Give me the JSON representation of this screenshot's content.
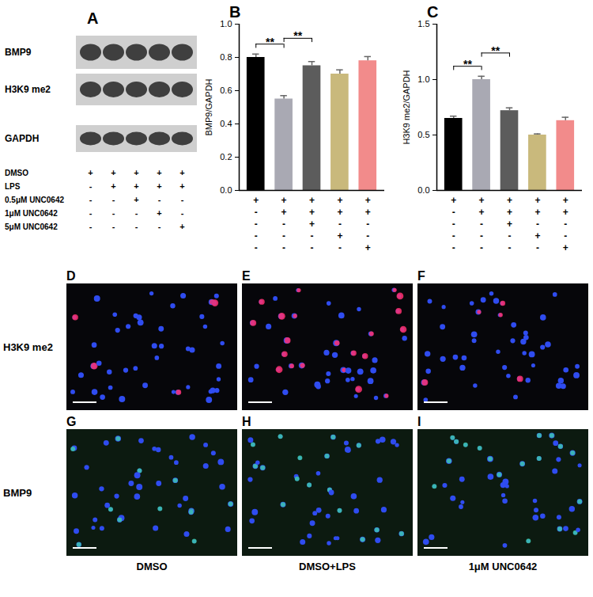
{
  "blot": {
    "panel": "A",
    "bands": [
      "BMP9",
      "H3K9 me2",
      "GAPDH"
    ],
    "treatments": [
      {
        "label": "DMSO",
        "signs": [
          "+",
          "+",
          "+",
          "+",
          "+"
        ]
      },
      {
        "label": "LPS",
        "signs": [
          "-",
          "+",
          "+",
          "+",
          "+"
        ]
      },
      {
        "label": "0.5μM UNC0642",
        "signs": [
          "-",
          "-",
          "+",
          "-",
          "-"
        ]
      },
      {
        "label": "1μM UNC0642",
        "signs": [
          "-",
          "-",
          "-",
          "+",
          "-"
        ]
      },
      {
        "label": "5μM UNC0642",
        "signs": [
          "-",
          "-",
          "-",
          "-",
          "+"
        ]
      }
    ]
  },
  "chart_data": [
    {
      "panel": "B",
      "type": "bar",
      "ylabel": "BMP9/GAPDH",
      "categories": [
        null,
        null,
        null,
        null,
        null
      ],
      "values": [
        0.8,
        0.55,
        0.75,
        0.7,
        0.78
      ],
      "errors": [
        0.02,
        0.02,
        0.025,
        0.025,
        0.025
      ],
      "colors": [
        "#000000",
        "#a9a9b3",
        "#5c5c5c",
        "#c9b97c",
        "#f28b8b"
      ],
      "ylim": [
        0,
        1.0
      ],
      "yticks": [
        {
          "value": 0,
          "label": "0.0"
        },
        {
          "value": 0.2,
          "label": "0.2"
        },
        {
          "value": 0.4,
          "label": "0.4"
        },
        {
          "value": 0.6,
          "label": "0.6"
        },
        {
          "value": 0.8,
          "label": "0.8"
        },
        {
          "value": 1.0,
          "label": "1.0"
        }
      ],
      "tick_labels": "y",
      "significance": [
        {
          "from": 0,
          "to": 1,
          "label": "**"
        },
        {
          "from": 1,
          "to": 2,
          "label": "**"
        }
      ],
      "treatment_signs": [
        [
          "+",
          "+",
          "+",
          "+",
          "+"
        ],
        [
          "-",
          "+",
          "+",
          "+",
          "+"
        ],
        [
          "-",
          "-",
          "+",
          "-",
          "-"
        ],
        [
          "-",
          "-",
          "-",
          "+",
          "-"
        ],
        [
          "-",
          "-",
          "-",
          "-",
          "+"
        ]
      ]
    },
    {
      "panel": "C",
      "type": "bar",
      "ylabel": "H3K9 me2/GAPDH",
      "categories": [
        null,
        null,
        null,
        null,
        null
      ],
      "values": [
        0.65,
        1.0,
        0.72,
        0.5,
        0.63
      ],
      "errors": [
        0.02,
        0.03,
        0.025,
        0.01,
        0.03
      ],
      "colors": [
        "#000000",
        "#a9a9b3",
        "#5c5c5c",
        "#c9b97c",
        "#f28b8b"
      ],
      "ylim": [
        0,
        1.5
      ],
      "yticks": [
        {
          "value": 0,
          "label": "0.0"
        },
        {
          "value": 0.5,
          "label": "0.5"
        },
        {
          "value": 1.0,
          "label": "1.0"
        },
        {
          "value": 1.5,
          "label": "1.5"
        }
      ],
      "tick_labels": "y",
      "significance": [
        {
          "from": 0,
          "to": 1,
          "label": "**"
        },
        {
          "from": 1,
          "to": 2,
          "label": "**"
        }
      ],
      "treatment_signs": [
        [
          "+",
          "+",
          "+",
          "+",
          "+"
        ],
        [
          "-",
          "+",
          "+",
          "+",
          "+"
        ],
        [
          "-",
          "-",
          "+",
          "-",
          "-"
        ],
        [
          "-",
          "-",
          "-",
          "+",
          "-"
        ],
        [
          "-",
          "-",
          "-",
          "-",
          "+"
        ]
      ]
    }
  ],
  "images": {
    "rows": [
      {
        "label": "H3K9 me2",
        "panels": [
          "D",
          "E",
          "F"
        ]
      },
      {
        "label": "BMP9",
        "panels": [
          "G",
          "H",
          "I"
        ]
      }
    ],
    "columns": [
      "DMSO",
      "DMSO+LPS",
      "1μM UNC0642"
    ]
  }
}
